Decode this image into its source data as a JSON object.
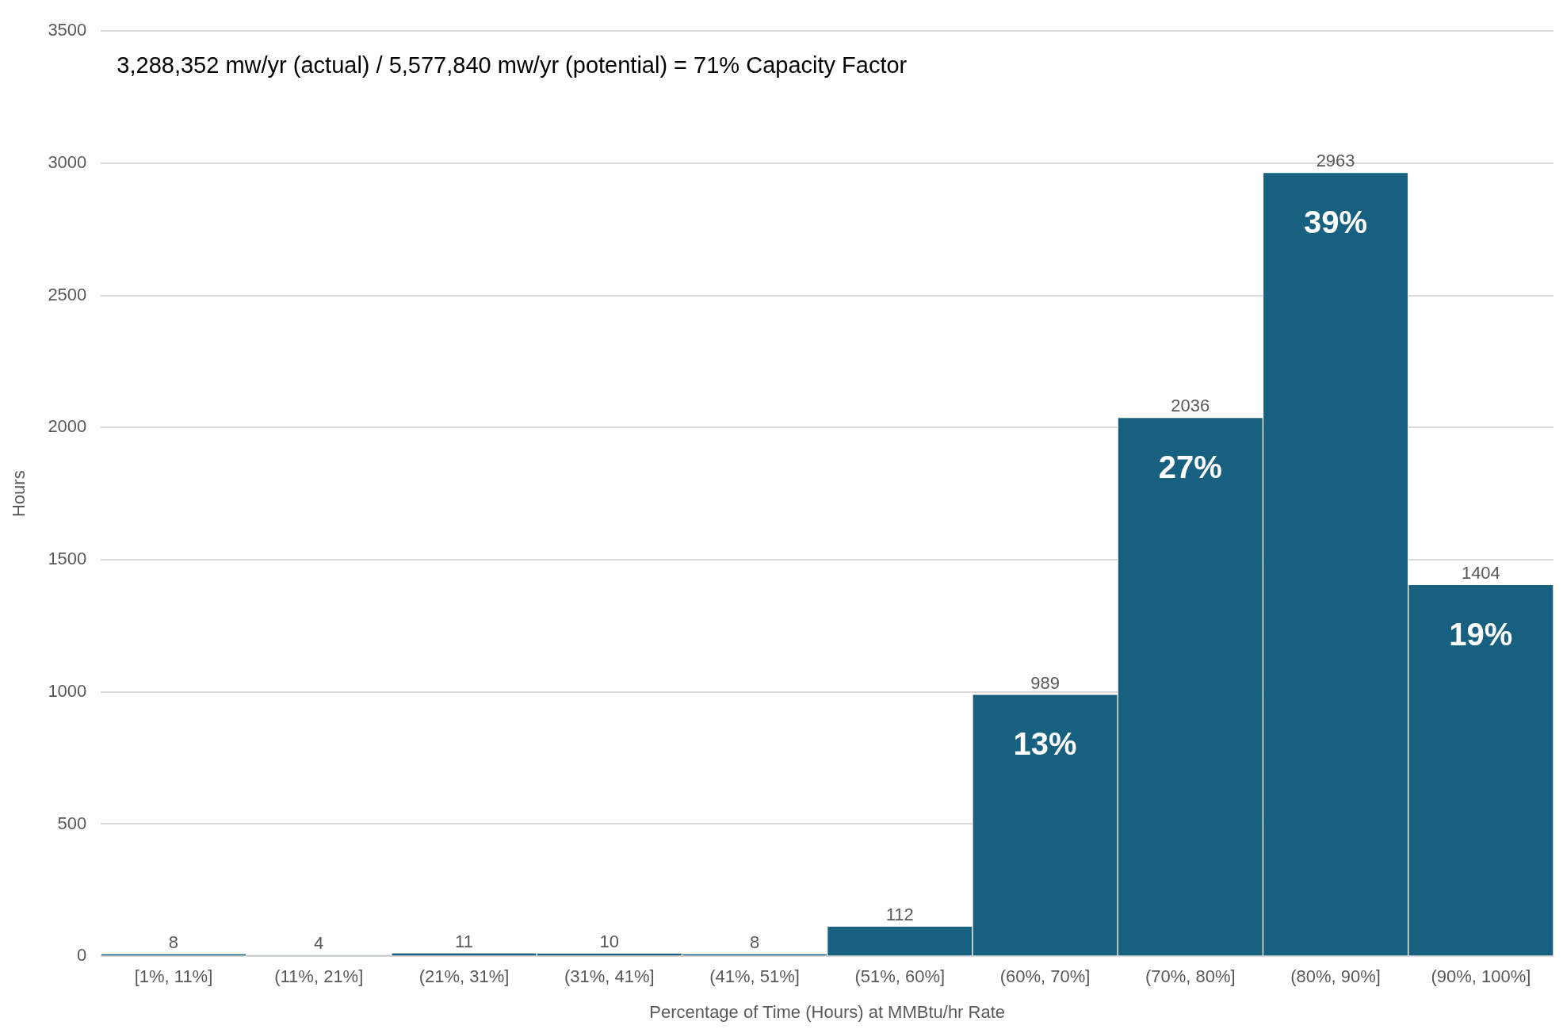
{
  "chart_data": {
    "type": "bar",
    "title": "3,288,352 mw/yr (actual) / 5,577,840 mw/yr (potential) = 71% Capacity Factor",
    "xlabel": "Percentage of Time (Hours) at MMBtu/hr Rate",
    "ylabel": "Hours",
    "categories": [
      "[1%, 11%]",
      "(11%, 21%]",
      "(21%, 31%]",
      "(31%, 41%]",
      "(41%, 51%]",
      "(51%, 60%]",
      "(60%, 70%]",
      "(70%, 80%]",
      "(80%, 90%]",
      "(90%, 100%]"
    ],
    "values": [
      8,
      4,
      11,
      10,
      8,
      112,
      989,
      2036,
      2963,
      1404
    ],
    "color": "#17607f",
    "ylim": [
      0,
      3500
    ],
    "yticks": [
      0,
      500,
      1000,
      1500,
      2000,
      2500,
      3000,
      3500
    ],
    "grid": "y",
    "data_labels": true,
    "legend": false,
    "annotations": [
      {
        "text": "13%",
        "x": "(60%, 70%]",
        "y": 989
      },
      {
        "text": "27%",
        "x": "(70%, 80%]",
        "y": 2036
      },
      {
        "text": "39%",
        "x": "(80%, 90%]",
        "y": 2963
      },
      {
        "text": "19%",
        "x": "(90%, 100%]",
        "y": 1404
      }
    ]
  }
}
